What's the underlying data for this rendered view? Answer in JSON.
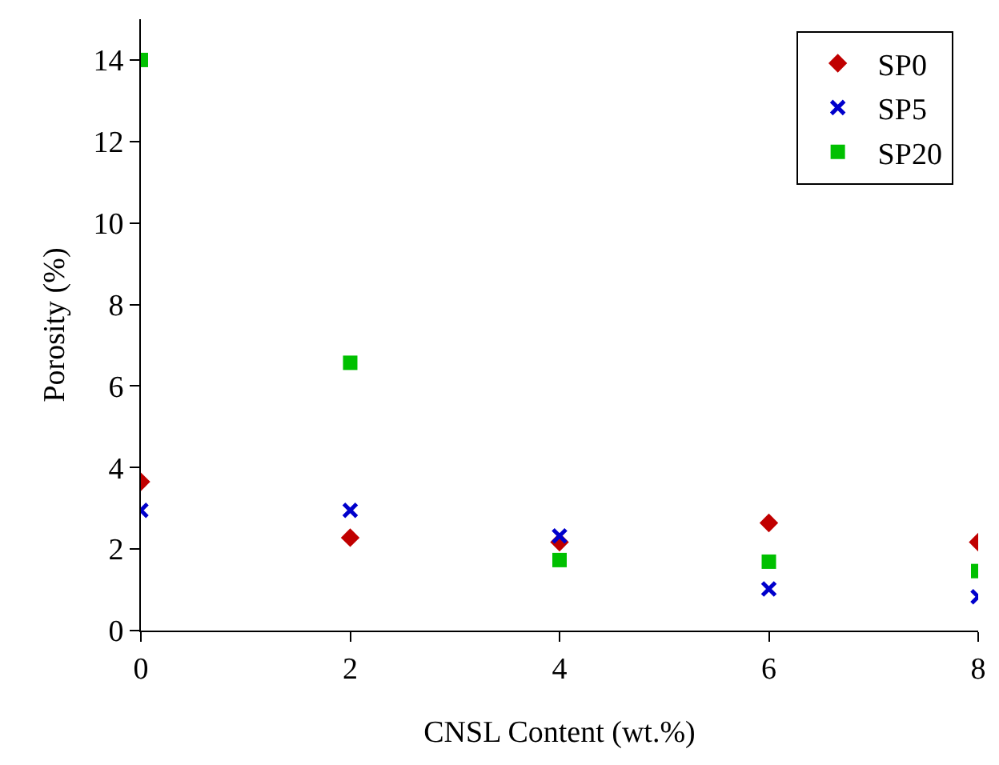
{
  "chart_data": {
    "type": "scatter",
    "xlabel": "CNSL Content (wt.%)",
    "ylabel": "Porosity (%)",
    "x": [
      0,
      2,
      4,
      6,
      8
    ],
    "series": [
      {
        "name": "SP0",
        "color": "#c00000",
        "marker": "diamond",
        "values": [
          3.65,
          2.28,
          2.17,
          2.64,
          2.17
        ]
      },
      {
        "name": "SP5",
        "color": "#0000cc",
        "marker": "cross",
        "values": [
          2.95,
          2.95,
          2.32,
          1.02,
          0.83
        ]
      },
      {
        "name": "SP20",
        "color": "#00c000",
        "marker": "square",
        "values": [
          14.0,
          6.57,
          1.73,
          1.69,
          1.46
        ]
      }
    ],
    "xlim": [
      0,
      8
    ],
    "xticks": [
      0,
      2,
      4,
      6,
      8
    ],
    "ylim": [
      0,
      15
    ],
    "yticks": [
      0,
      2,
      4,
      6,
      8,
      10,
      12,
      14
    ],
    "grid": false,
    "legend": "top right"
  }
}
